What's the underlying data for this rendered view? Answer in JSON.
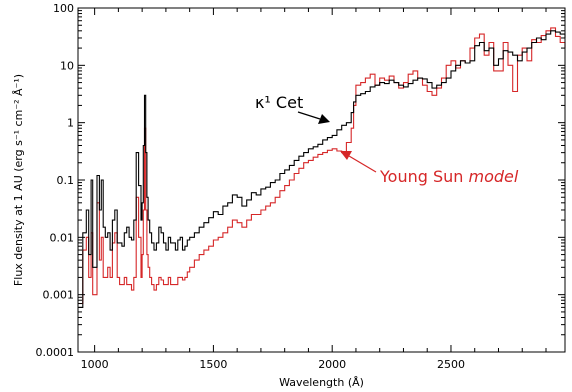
{
  "chart_data": {
    "type": "line",
    "title": "",
    "xlabel": "Wavelength (Å)",
    "ylabel": "Flux density at 1 AU (erg s⁻¹ cm⁻² Å⁻¹)",
    "xlim": [
      930,
      2980
    ],
    "ylim": [
      0.0001,
      100
    ],
    "yscale": "log",
    "xticks": [
      1000,
      1500,
      2000,
      2500
    ],
    "xtick_labels": [
      "1000",
      "1500",
      "2000",
      "2500"
    ],
    "yticks": [
      0.0001,
      0.001,
      0.01,
      0.1,
      1,
      10,
      100
    ],
    "ytick_labels": [
      "0.0001",
      "0.001",
      "0.01",
      "0.1",
      "1",
      "10",
      "100"
    ],
    "grid": false,
    "legend": "none",
    "annotations": [
      {
        "text": "κ¹ Cet",
        "points_to_series": "κ¹ Cet",
        "color": "#000000"
      },
      {
        "text_plain": "Young Sun ",
        "text_italic": "model",
        "points_to_series": "Young Sun model",
        "color": "#d62728"
      }
    ],
    "series": [
      {
        "name": "κ¹ Cet",
        "color": "#000000",
        "x": [
          930,
          950,
          965,
          975,
          985,
          992,
          1000,
          1010,
          1020,
          1028,
          1036,
          1045,
          1055,
          1065,
          1075,
          1085,
          1095,
          1105,
          1115,
          1125,
          1135,
          1145,
          1155,
          1165,
          1175,
          1185,
          1195,
          1200,
          1205,
          1210,
          1215,
          1220,
          1225,
          1232,
          1240,
          1250,
          1260,
          1270,
          1280,
          1290,
          1300,
          1310,
          1320,
          1330,
          1340,
          1350,
          1360,
          1370,
          1380,
          1390,
          1400,
          1420,
          1440,
          1460,
          1480,
          1500,
          1520,
          1540,
          1560,
          1580,
          1600,
          1620,
          1640,
          1660,
          1680,
          1700,
          1720,
          1740,
          1760,
          1780,
          1800,
          1820,
          1840,
          1860,
          1880,
          1900,
          1920,
          1940,
          1960,
          1980,
          2000,
          2020,
          2040,
          2060,
          2080,
          2090,
          2100,
          2120,
          2140,
          2160,
          2180,
          2200,
          2220,
          2240,
          2260,
          2280,
          2300,
          2320,
          2340,
          2360,
          2380,
          2400,
          2420,
          2440,
          2460,
          2480,
          2500,
          2520,
          2540,
          2560,
          2580,
          2600,
          2620,
          2640,
          2660,
          2680,
          2700,
          2720,
          2740,
          2760,
          2780,
          2800,
          2820,
          2840,
          2860,
          2880,
          2900,
          2920,
          2940,
          2960,
          2980
        ],
        "y": [
          0.0006,
          0.012,
          0.03,
          0.005,
          0.1,
          0.003,
          0.003,
          0.12,
          0.03,
          0.1,
          0.015,
          0.01,
          0.012,
          0.006,
          0.02,
          0.03,
          0.008,
          0.008,
          0.007,
          0.012,
          0.015,
          0.01,
          0.009,
          0.02,
          0.3,
          0.08,
          0.02,
          0.04,
          0.4,
          3.0,
          0.3,
          0.05,
          0.02,
          0.012,
          0.008,
          0.006,
          0.008,
          0.015,
          0.012,
          0.008,
          0.006,
          0.01,
          0.008,
          0.008,
          0.006,
          0.009,
          0.01,
          0.006,
          0.007,
          0.009,
          0.01,
          0.012,
          0.015,
          0.018,
          0.022,
          0.028,
          0.025,
          0.035,
          0.04,
          0.055,
          0.05,
          0.035,
          0.045,
          0.06,
          0.055,
          0.07,
          0.075,
          0.09,
          0.1,
          0.13,
          0.15,
          0.18,
          0.22,
          0.26,
          0.3,
          0.35,
          0.38,
          0.42,
          0.5,
          0.55,
          0.6,
          0.75,
          0.9,
          1.0,
          1.5,
          2.3,
          3.0,
          3.2,
          3.5,
          4.2,
          4.5,
          5.0,
          4.8,
          5.5,
          5.0,
          4.5,
          4.2,
          4.8,
          5.5,
          6.0,
          5.8,
          5.0,
          4.0,
          4.5,
          5.0,
          6.0,
          8.0,
          10.0,
          12.0,
          11.0,
          12.0,
          22.0,
          25.0,
          18.0,
          20.0,
          10.0,
          13.0,
          18.0,
          17.0,
          15.0,
          12.0,
          17.0,
          20.0,
          25.0,
          30.0,
          28.0,
          35.0,
          40.0,
          38.0,
          35.0,
          30.0
        ]
      },
      {
        "name": "Young Sun model",
        "color": "#d62728",
        "x": [
          930,
          950,
          965,
          975,
          985,
          992,
          1000,
          1010,
          1020,
          1028,
          1036,
          1045,
          1055,
          1065,
          1075,
          1085,
          1095,
          1105,
          1115,
          1125,
          1135,
          1145,
          1155,
          1165,
          1175,
          1185,
          1195,
          1200,
          1205,
          1210,
          1215,
          1220,
          1225,
          1232,
          1240,
          1250,
          1260,
          1270,
          1280,
          1290,
          1300,
          1310,
          1320,
          1330,
          1340,
          1350,
          1360,
          1370,
          1380,
          1390,
          1400,
          1420,
          1440,
          1460,
          1480,
          1500,
          1520,
          1540,
          1560,
          1580,
          1600,
          1620,
          1640,
          1660,
          1680,
          1700,
          1720,
          1740,
          1760,
          1780,
          1800,
          1820,
          1840,
          1860,
          1880,
          1900,
          1920,
          1940,
          1960,
          1980,
          2000,
          2020,
          2040,
          2060,
          2080,
          2090,
          2100,
          2120,
          2140,
          2160,
          2180,
          2200,
          2220,
          2240,
          2260,
          2280,
          2300,
          2320,
          2340,
          2360,
          2380,
          2400,
          2420,
          2440,
          2460,
          2480,
          2500,
          2520,
          2540,
          2560,
          2580,
          2600,
          2620,
          2640,
          2660,
          2680,
          2700,
          2720,
          2740,
          2760,
          2780,
          2800,
          2820,
          2840,
          2860,
          2880,
          2900,
          2920,
          2940,
          2960,
          2980
        ],
        "y": [
          0.0007,
          0.006,
          0.01,
          0.002,
          0.012,
          0.001,
          0.001,
          0.04,
          0.004,
          0.01,
          0.002,
          0.002,
          0.003,
          0.002,
          0.008,
          0.012,
          0.002,
          0.0015,
          0.0015,
          0.002,
          0.0015,
          0.0015,
          0.0012,
          0.002,
          0.05,
          0.01,
          0.002,
          0.005,
          0.03,
          0.8,
          0.03,
          0.005,
          0.003,
          0.002,
          0.0015,
          0.0012,
          0.0015,
          0.002,
          0.0018,
          0.0015,
          0.0015,
          0.002,
          0.0015,
          0.0015,
          0.0015,
          0.002,
          0.002,
          0.0018,
          0.002,
          0.0025,
          0.003,
          0.004,
          0.005,
          0.006,
          0.007,
          0.009,
          0.01,
          0.012,
          0.015,
          0.02,
          0.018,
          0.015,
          0.02,
          0.025,
          0.025,
          0.03,
          0.035,
          0.04,
          0.05,
          0.065,
          0.08,
          0.1,
          0.13,
          0.16,
          0.2,
          0.22,
          0.25,
          0.28,
          0.3,
          0.33,
          0.35,
          0.32,
          0.3,
          0.45,
          0.8,
          2.0,
          4.5,
          5.0,
          6.0,
          7.0,
          4.5,
          6.0,
          5.5,
          6.5,
          5.0,
          4.0,
          5.0,
          7.0,
          8.0,
          6.0,
          4.5,
          3.5,
          3.0,
          4.0,
          6.0,
          10.0,
          12.0,
          9.0,
          12.0,
          11.0,
          20.0,
          30.0,
          35.0,
          15.0,
          25.0,
          8.0,
          8.0,
          25.0,
          10.0,
          3.5,
          15.0,
          20.0,
          12.0,
          28.0,
          25.0,
          33.0,
          40.0,
          45.0,
          32.0,
          25.0,
          20.0
        ]
      }
    ]
  }
}
